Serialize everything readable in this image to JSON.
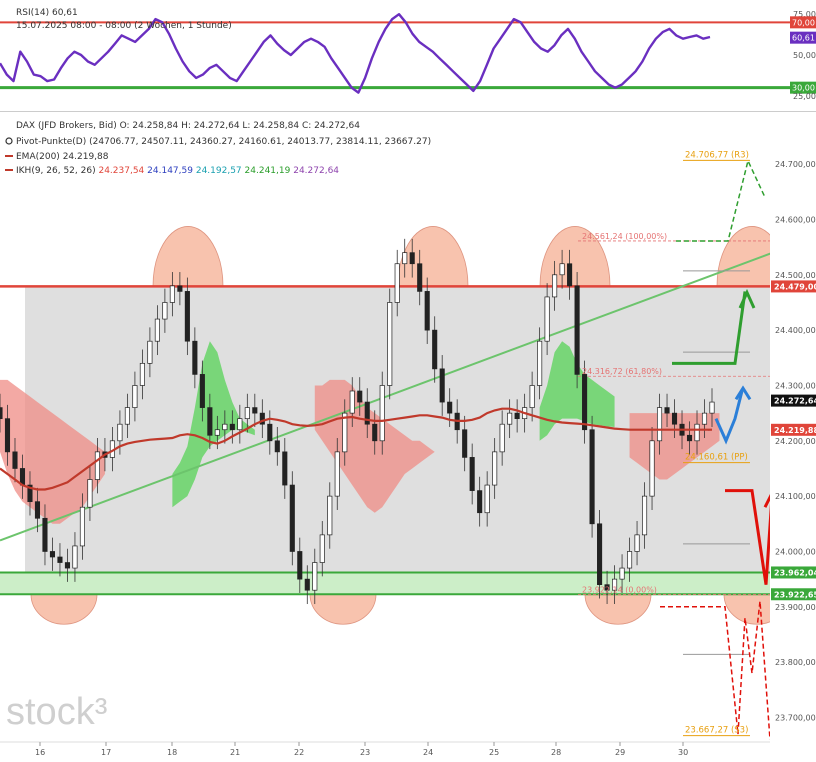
{
  "rsi_panel": {
    "title": "RSI(14)",
    "value": "60,61",
    "date_line": "15.07.2025 08:00 - 08:00",
    "range_line": "(2 Wochen, 1 Stunde)",
    "levels": {
      "upper": 70,
      "lower": 30
    },
    "axis_labels": [
      "75,00",
      "70,00",
      "60,61",
      "50,00",
      "30,00",
      "25,00"
    ],
    "series": [
      45,
      38,
      34,
      52,
      46,
      38,
      37,
      34,
      35,
      42,
      48,
      52,
      50,
      46,
      44,
      48,
      52,
      57,
      62,
      60,
      58,
      62,
      66,
      72,
      70,
      63,
      54,
      46,
      40,
      36,
      38,
      42,
      44,
      40,
      36,
      34,
      40,
      46,
      52,
      58,
      62,
      57,
      53,
      50,
      54,
      58,
      60,
      58,
      55,
      48,
      42,
      36,
      30,
      27,
      36,
      48,
      58,
      66,
      72,
      75,
      70,
      63,
      58,
      55,
      52,
      48,
      44,
      40,
      36,
      32,
      28,
      34,
      44,
      54,
      60,
      66,
      72,
      70,
      64,
      58,
      54,
      52,
      56,
      62,
      66,
      60,
      52,
      46,
      40,
      36,
      32,
      30,
      32,
      36,
      40,
      46,
      54,
      60,
      64,
      66,
      62,
      60,
      61,
      62,
      60,
      61
    ]
  },
  "legend": {
    "dax": "DAX (JFD Brokers, Bid)",
    "ohlc": "O: 24.258,84  H: 24.272,64  L: 24.258,84  C: 24.272,64",
    "pivot_name": "Pivot-Punkte(D)",
    "pivot_values": "(24706.77,  24507.11,  24360.27,  24160.61,  24013.77,  23814.11,  23667.27)",
    "ema_name": "EMA(200)",
    "ema_value": "24.219,88",
    "ikh_name": "IKH(9, 26, 52, 26)",
    "ikh_v1": "24.237,54",
    "ikh_v2": "24.147,59",
    "ikh_v3": "24.192,57",
    "ikh_v4": "24.241,19",
    "ikh_v5": "24.272,64"
  },
  "chart_data": {
    "type": "line",
    "ylim": [
      23650,
      24750
    ],
    "y_ticks": [
      {
        "value": 24700,
        "label": "24.700,00"
      },
      {
        "value": 24600,
        "label": "24.600,00"
      },
      {
        "value": 24500,
        "label": "24.500,00"
      },
      {
        "value": 24400,
        "label": "24.400,00"
      },
      {
        "value": 24300,
        "label": "24.300,00"
      },
      {
        "value": 24200,
        "label": "24.200,00"
      },
      {
        "value": 24100,
        "label": "24.100,00"
      },
      {
        "value": 24000,
        "label": "24.000,00"
      },
      {
        "value": 23900,
        "label": "23.900,00"
      },
      {
        "value": 23800,
        "label": "23.800,00"
      },
      {
        "value": 23700,
        "label": "23.700,00"
      }
    ],
    "x_labels": [
      "16",
      "17",
      "18",
      "21",
      "22",
      "23",
      "24",
      "25",
      "28",
      "29",
      "30"
    ],
    "price_badges": [
      {
        "value": 24479,
        "label": "24.479,00",
        "color": "#e0453a"
      },
      {
        "value": 24272.64,
        "label": "24.272,64",
        "color": "#111111"
      },
      {
        "value": 24219.88,
        "label": "24.219,88",
        "color": "#e0453a"
      },
      {
        "value": 23962.04,
        "label": "23.962,04",
        "color": "#3aa83a"
      },
      {
        "value": 23922.65,
        "label": "23.922,65",
        "color": "#3aa83a"
      }
    ],
    "pivot_labels": [
      {
        "value": 24706.77,
        "label": "24.706,77 (R3)"
      },
      {
        "value": 24160.61,
        "label": "24.160,61 (PP)"
      },
      {
        "value": 23667.27,
        "label": "23.667,27 (S3)"
      }
    ],
    "fib_labels": [
      {
        "value": 24561.24,
        "label": "24.561,24 (100,00%)"
      },
      {
        "value": 24316.72,
        "label": "24.316,72 (61,80%)"
      },
      {
        "value": 23922.14,
        "label": "23.922,14 (0,00%)"
      }
    ],
    "close_series": [
      24240,
      24180,
      24150,
      24120,
      24090,
      24060,
      24000,
      23990,
      23980,
      23970,
      24010,
      24080,
      24130,
      24180,
      24170,
      24200,
      24230,
      24260,
      24300,
      24340,
      24380,
      24420,
      24450,
      24480,
      24470,
      24380,
      24320,
      24260,
      24210,
      24220,
      24230,
      24220,
      24240,
      24260,
      24250,
      24230,
      24200,
      24180,
      24120,
      24000,
      23950,
      23930,
      23980,
      24030,
      24100,
      24180,
      24250,
      24290,
      24270,
      24230,
      24200,
      24300,
      24450,
      24520,
      24540,
      24520,
      24470,
      24400,
      24330,
      24270,
      24250,
      24220,
      24170,
      24110,
      24070,
      24120,
      24180,
      24230,
      24250,
      24240,
      24260,
      24300,
      24380,
      24460,
      24500,
      24520,
      24480,
      24320,
      24220,
      24050,
      23940,
      23930,
      23950,
      23970,
      24000,
      24030,
      24100,
      24200,
      24260,
      24250,
      24230,
      24210,
      24200,
      24230,
      24250,
      24270
    ],
    "ema_series": [
      24150,
      24140,
      24130,
      24120,
      24115,
      24112,
      24112,
      24115,
      24120,
      24125,
      24135,
      24145,
      24155,
      24165,
      24175,
      24182,
      24190,
      24195,
      24198,
      24200,
      24202,
      24203,
      24204,
      24205,
      24210,
      24212,
      24210,
      24205,
      24198,
      24195,
      24200,
      24208,
      24215,
      24222,
      24230,
      24236,
      24240,
      24238,
      24235,
      24230,
      24228,
      24227,
      24228,
      24230,
      24235,
      24240,
      24242,
      24243,
      24240,
      24238,
      24236,
      24236,
      24238,
      24240,
      24242,
      24244,
      24246,
      24246,
      24244,
      24242,
      24238,
      24236,
      24236,
      24238,
      24242,
      24250,
      24255,
      24258,
      24258,
      24255,
      24250,
      24246,
      24242,
      24238,
      24235,
      24233,
      24232,
      24231,
      24230,
      24228,
      24226,
      24224,
      24222,
      24221,
      24220,
      24220,
      24220,
      24220,
      24220,
      24220,
      24220,
      24220,
      24220,
      24220,
      24220,
      24220
    ],
    "ikh_bull_cloud": [
      {
        "from": 23,
        "to": 34,
        "upper": [
          24140,
          24160,
          24190,
          24260,
          24340,
          24380,
          24360,
          24310,
          24270,
          24240,
          24230,
          24220
        ],
        "lower": [
          24080,
          24090,
          24100,
          24130,
          24170,
          24190,
          24200,
          24210,
          24220,
          24220,
          24215,
          24210
        ]
      },
      {
        "from": 72,
        "to": 82,
        "upper": [
          24260,
          24300,
          24360,
          24380,
          24370,
          24340,
          24320,
          24310,
          24300,
          24290,
          24280
        ],
        "lower": [
          24200,
          24210,
          24230,
          24240,
          24240,
          24240,
          24235,
          24230,
          24228,
          24226,
          24225
        ]
      }
    ],
    "ikh_bear_cloud": [
      {
        "from": 0,
        "to": 14,
        "upper": [
          24310,
          24310,
          24300,
          24290,
          24280,
          24270,
          24260,
          24250,
          24240,
          24230,
          24220,
          24210,
          24200,
          24190,
          24180
        ],
        "lower": [
          24180,
          24140,
          24110,
          24090,
          24080,
          24070,
          24060,
          24050,
          24050,
          24060,
          24070,
          24080,
          24100,
          24120,
          24140
        ]
      },
      {
        "from": 42,
        "to": 58,
        "upper": [
          24300,
          24300,
          24310,
          24310,
          24310,
          24300,
          24280,
          24260,
          24250,
          24240,
          24230,
          24220,
          24210,
          24200,
          24200,
          24190,
          24180
        ],
        "lower": [
          24220,
          24200,
          24180,
          24160,
          24140,
          24120,
          24100,
          24080,
          24070,
          24080,
          24100,
          24120,
          24140,
          24150,
          24160,
          24170,
          24180
        ]
      },
      {
        "from": 84,
        "to": 96,
        "upper": [
          24250,
          24250,
          24250,
          24250,
          24250,
          24250,
          24250,
          24250,
          24250,
          24250,
          24250,
          24250,
          24250
        ],
        "lower": [
          24170,
          24160,
          24150,
          24140,
          24130,
          24130,
          24140,
          24150,
          24160,
          24170,
          24180,
          24190,
          24200
        ]
      }
    ],
    "trendline": {
      "from": [
        0,
        24020
      ],
      "to": [
        115,
        24600
      ]
    },
    "resistance_level": 24479,
    "support_zone": [
      23922.65,
      23962.04
    ]
  },
  "watermark": "stock³"
}
